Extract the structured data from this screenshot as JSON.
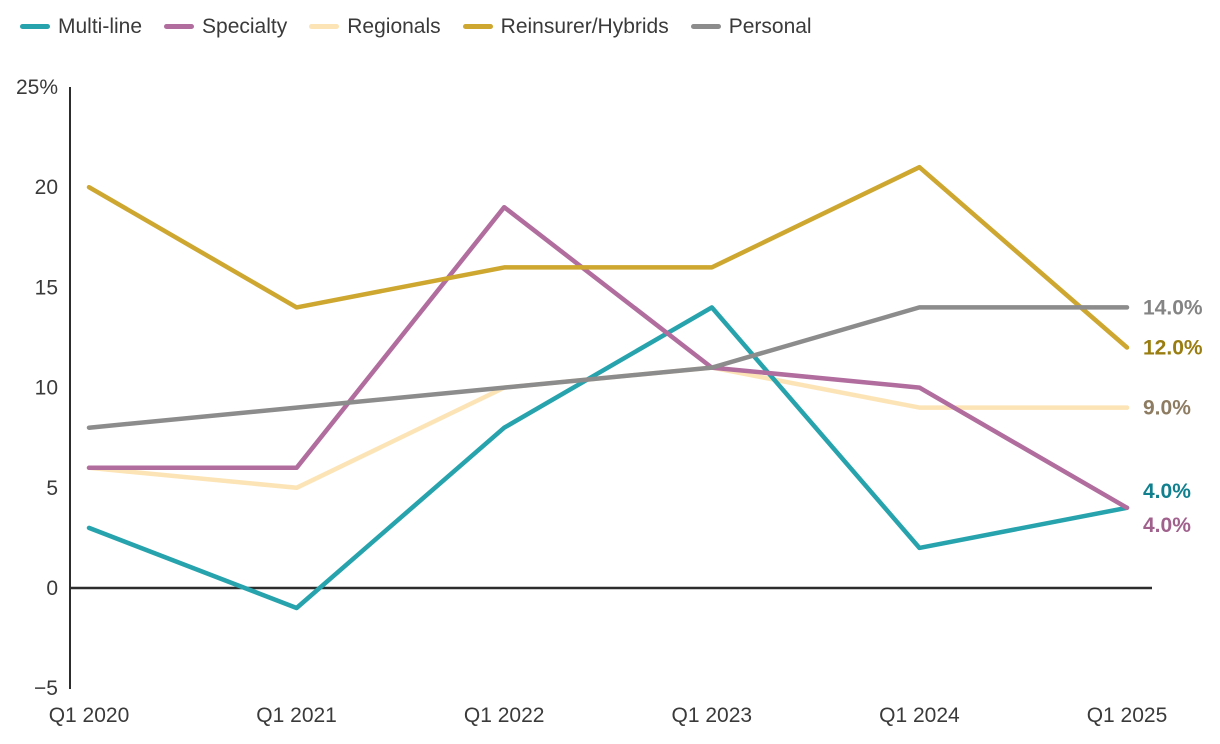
{
  "chart_data": {
    "type": "line",
    "title": "",
    "xlabel": "",
    "ylabel": "",
    "grid": false,
    "legend_position": "top-left",
    "axis_color": "#2d2d2d",
    "text_color": "#3a3a3a",
    "categories": [
      "Q1 2020",
      "Q1 2021",
      "Q1 2022",
      "Q1 2023",
      "Q1 2024",
      "Q1 2025"
    ],
    "y_axis": {
      "min": -5,
      "max": 25,
      "step": 5,
      "tick_labels": [
        "25%",
        "20",
        "15",
        "10",
        "5",
        "0",
        "−5"
      ]
    },
    "series": [
      {
        "name": "Multi-line",
        "color": "#26a3ad",
        "label_color": "#107f8e",
        "values": [
          3,
          -1,
          8,
          14,
          2,
          4
        ],
        "end_label": "4.0%"
      },
      {
        "name": "Specialty",
        "color": "#b06d9e",
        "label_color": "#a0618d",
        "values": [
          6,
          6,
          19,
          11,
          10,
          4
        ],
        "end_label": "4.0%"
      },
      {
        "name": "Regionals",
        "color": "#fce4b6",
        "label_color": "#8e7c62",
        "values": [
          6,
          5,
          10,
          11,
          9,
          9
        ],
        "end_label": "9.0%"
      },
      {
        "name": "Reinsurer/Hybrids",
        "color": "#cda72f",
        "label_color": "#9a7d10",
        "values": [
          20,
          14,
          16,
          16,
          21,
          12
        ],
        "end_label": "12.0%"
      },
      {
        "name": "Personal",
        "color": "#8c8c8c",
        "label_color": "#848484",
        "values": [
          8,
          9,
          10,
          11,
          14,
          14
        ],
        "end_label": "14.0%"
      }
    ]
  }
}
